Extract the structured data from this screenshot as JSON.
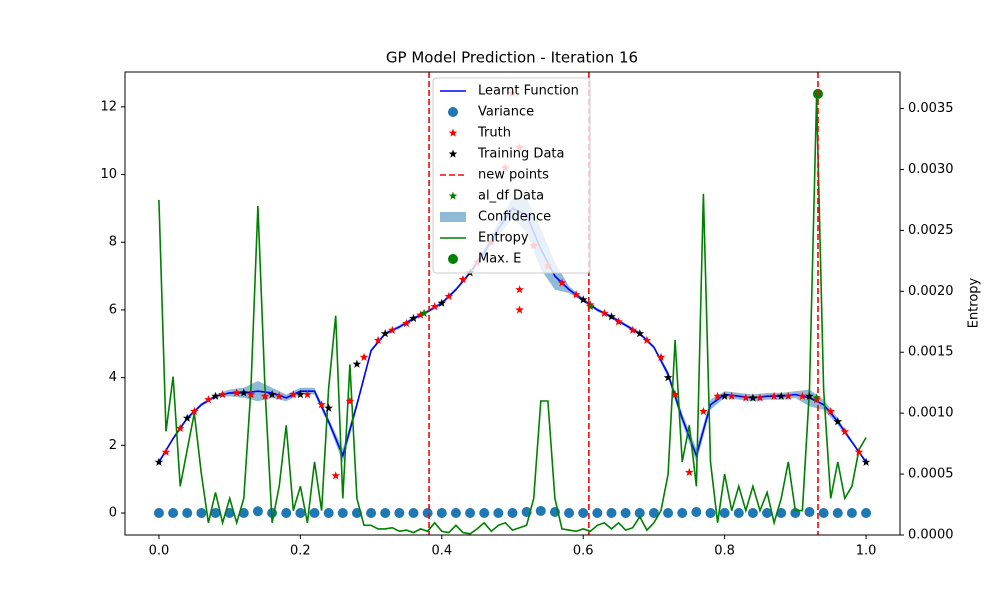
{
  "chart_data": {
    "type": "line",
    "title": "GP Model Prediction - Iteration 16",
    "y2label": "Entropy",
    "xlim": [
      -0.048,
      1.048
    ],
    "ylim": [
      -0.65,
      13.03
    ],
    "y2lim": [
      0,
      0.0038
    ],
    "xticks": [
      {
        "value": 0,
        "label": "0.0"
      },
      {
        "value": 0.2,
        "label": "0.2"
      },
      {
        "value": 0.4,
        "label": "0.4"
      },
      {
        "value": 0.6,
        "label": "0.6"
      },
      {
        "value": 0.8,
        "label": "0.8"
      },
      {
        "value": 1,
        "label": "1.0"
      }
    ],
    "yticks": [
      0,
      2,
      4,
      6,
      8,
      10,
      12
    ],
    "y2ticks": [
      {
        "value": 0,
        "label": "0.0000"
      },
      {
        "value": 0.0005,
        "label": "0.0005"
      },
      {
        "value": 0.001,
        "label": "0.0010"
      },
      {
        "value": 0.0015,
        "label": "0.0015"
      },
      {
        "value": 0.002,
        "label": "0.0020"
      },
      {
        "value": 0.0025,
        "label": "0.0025"
      },
      {
        "value": 0.003,
        "label": "0.0030"
      },
      {
        "value": 0.0035,
        "label": "0.0035"
      }
    ],
    "legend": "upper center",
    "series": [
      {
        "name": "Learnt Function",
        "type": "line",
        "color": "#0000ff",
        "x": [
          0,
          0.02,
          0.04,
          0.06,
          0.08,
          0.1,
          0.12,
          0.14,
          0.16,
          0.18,
          0.2,
          0.22,
          0.24,
          0.26,
          0.28,
          0.3,
          0.32,
          0.34,
          0.36,
          0.38,
          0.4,
          0.42,
          0.44,
          0.46,
          0.48,
          0.5,
          0.52,
          0.54,
          0.56,
          0.58,
          0.6,
          0.62,
          0.64,
          0.66,
          0.68,
          0.7,
          0.72,
          0.74,
          0.76,
          0.78,
          0.8,
          0.82,
          0.84,
          0.86,
          0.88,
          0.9,
          0.92,
          0.94,
          0.96,
          0.98,
          1
        ],
        "values": [
          1.5,
          2.2,
          2.8,
          3.2,
          3.45,
          3.55,
          3.55,
          3.6,
          3.55,
          3.4,
          3.6,
          3.6,
          2.7,
          1.7,
          3.2,
          4.8,
          5.3,
          5.5,
          5.75,
          5.95,
          6.2,
          6.6,
          7.1,
          7.7,
          8.4,
          9.0,
          8.8,
          7.8,
          7.0,
          6.6,
          6.3,
          6.0,
          5.8,
          5.55,
          5.3,
          4.9,
          4.1,
          2.8,
          1.7,
          3.2,
          3.5,
          3.45,
          3.4,
          3.45,
          3.45,
          3.5,
          3.4,
          3.2,
          2.7,
          2.1,
          1.5
        ]
      },
      {
        "name": "Variance",
        "type": "scatter",
        "color": "#1f77b4",
        "x": [
          0,
          0.02,
          0.04,
          0.06,
          0.08,
          0.1,
          0.12,
          0.14,
          0.16,
          0.18,
          0.2,
          0.22,
          0.24,
          0.26,
          0.28,
          0.3,
          0.32,
          0.34,
          0.36,
          0.38,
          0.4,
          0.42,
          0.44,
          0.46,
          0.48,
          0.5,
          0.52,
          0.54,
          0.56,
          0.58,
          0.6,
          0.62,
          0.64,
          0.66,
          0.68,
          0.7,
          0.72,
          0.74,
          0.76,
          0.78,
          0.8,
          0.82,
          0.84,
          0.86,
          0.88,
          0.9,
          0.92,
          0.94,
          0.96,
          0.98,
          1
        ],
        "values": [
          0,
          0,
          0,
          0,
          0,
          0,
          0,
          0.05,
          0,
          0,
          0,
          0,
          0,
          0,
          0,
          0,
          0,
          0,
          0,
          0,
          0,
          0,
          0,
          0,
          0,
          0,
          0.03,
          0.06,
          0.03,
          0,
          0,
          0,
          0,
          0,
          0,
          0,
          0,
          0,
          0.03,
          0,
          0,
          0,
          0,
          0,
          0,
          0,
          0.03,
          0,
          0,
          0,
          0
        ]
      },
      {
        "name": "Truth",
        "type": "star",
        "color": "#ff0000",
        "x": [
          0.01,
          0.03,
          0.05,
          0.07,
          0.09,
          0.11,
          0.13,
          0.15,
          0.17,
          0.19,
          0.21,
          0.23,
          0.25,
          0.27,
          0.29,
          0.31,
          0.33,
          0.35,
          0.37,
          0.39,
          0.41,
          0.43,
          0.45,
          0.47,
          0.49,
          0.5,
          0.51,
          0.51,
          0.51,
          0.53,
          0.55,
          0.57,
          0.59,
          0.61,
          0.63,
          0.65,
          0.67,
          0.69,
          0.71,
          0.73,
          0.75,
          0.77,
          0.79,
          0.81,
          0.83,
          0.85,
          0.87,
          0.89,
          0.91,
          0.93,
          0.95,
          0.97,
          0.99
        ],
        "values": [
          1.8,
          2.5,
          3.0,
          3.35,
          3.5,
          3.55,
          3.5,
          3.45,
          3.45,
          3.5,
          3.5,
          3.2,
          1.1,
          3.3,
          4.6,
          5.1,
          5.4,
          5.6,
          5.85,
          6.1,
          6.4,
          6.9,
          7.4,
          8.0,
          10.2,
          12.4,
          10.8,
          6.6,
          6.0,
          7.9,
          7.3,
          6.8,
          6.45,
          6.15,
          5.9,
          5.65,
          5.4,
          5.1,
          4.6,
          3.5,
          1.2,
          3.0,
          3.45,
          3.45,
          3.4,
          3.4,
          3.45,
          3.45,
          3.45,
          3.35,
          3.0,
          2.4,
          1.8
        ]
      },
      {
        "name": "Training Data",
        "type": "star",
        "color": "#000000",
        "x": [
          0,
          0.04,
          0.08,
          0.12,
          0.16,
          0.2,
          0.24,
          0.28,
          0.32,
          0.36,
          0.4,
          0.44,
          0.6,
          0.64,
          0.68,
          0.72,
          0.8,
          0.84,
          0.88,
          0.92,
          0.96,
          1
        ],
        "values": [
          1.5,
          2.8,
          3.45,
          3.55,
          3.5,
          3.5,
          3.1,
          4.4,
          5.3,
          5.75,
          6.2,
          7.1,
          6.3,
          5.8,
          5.3,
          4.0,
          3.45,
          3.4,
          3.45,
          3.45,
          2.7,
          1.5
        ]
      },
      {
        "name": "new points",
        "type": "vline",
        "color": "#ff0000",
        "x": [
          0.382,
          0.608,
          0.932
        ]
      },
      {
        "name": "al_df Data",
        "type": "star",
        "color": "#008000",
        "x": [
          0.375,
          0.61,
          0.93
        ],
        "values": [
          5.9,
          6.1,
          3.4
        ]
      },
      {
        "name": "Confidence",
        "type": "band",
        "color": "#1f77b4",
        "x": [
          0,
          0.02,
          0.04,
          0.06,
          0.08,
          0.1,
          0.12,
          0.14,
          0.16,
          0.18,
          0.2,
          0.22,
          0.24,
          0.26,
          0.28,
          0.3,
          0.32,
          0.34,
          0.36,
          0.38,
          0.4,
          0.42,
          0.44,
          0.46,
          0.48,
          0.5,
          0.52,
          0.54,
          0.56,
          0.58,
          0.6,
          0.62,
          0.64,
          0.66,
          0.68,
          0.7,
          0.72,
          0.74,
          0.76,
          0.78,
          0.8,
          0.82,
          0.84,
          0.86,
          0.88,
          0.9,
          0.92,
          0.94,
          0.96,
          0.98,
          1
        ],
        "lower": [
          1.45,
          2.15,
          2.75,
          3.15,
          3.4,
          3.45,
          3.4,
          3.3,
          3.4,
          3.3,
          3.5,
          3.5,
          2.6,
          1.5,
          3.1,
          4.75,
          5.25,
          5.45,
          5.7,
          5.9,
          6.15,
          6.55,
          7.05,
          7.6,
          8.2,
          8.7,
          8.3,
          7.2,
          6.6,
          6.5,
          6.25,
          5.95,
          5.75,
          5.5,
          5.25,
          4.85,
          4.0,
          2.65,
          1.5,
          3.05,
          3.4,
          3.35,
          3.3,
          3.35,
          3.35,
          3.4,
          3.15,
          3.05,
          2.6,
          2.05,
          1.45
        ],
        "upper": [
          1.55,
          2.25,
          2.85,
          3.25,
          3.5,
          3.65,
          3.7,
          3.9,
          3.7,
          3.5,
          3.7,
          3.7,
          2.8,
          1.9,
          3.3,
          4.85,
          5.35,
          5.55,
          5.8,
          6.0,
          6.25,
          6.65,
          7.15,
          7.8,
          8.6,
          9.3,
          9.3,
          8.4,
          7.4,
          6.7,
          6.35,
          6.05,
          5.85,
          5.6,
          5.35,
          4.95,
          4.2,
          2.95,
          1.9,
          3.35,
          3.6,
          3.55,
          3.5,
          3.55,
          3.55,
          3.6,
          3.65,
          3.35,
          2.8,
          2.15,
          1.55
        ]
      },
      {
        "name": "Entropy",
        "type": "line",
        "axis": "y2",
        "color": "#008000",
        "x": [
          0,
          0.01,
          0.02,
          0.03,
          0.04,
          0.05,
          0.06,
          0.07,
          0.08,
          0.09,
          0.1,
          0.11,
          0.12,
          0.13,
          0.14,
          0.15,
          0.16,
          0.17,
          0.18,
          0.19,
          0.2,
          0.21,
          0.22,
          0.23,
          0.24,
          0.25,
          0.26,
          0.27,
          0.28,
          0.29,
          0.3,
          0.31,
          0.32,
          0.33,
          0.34,
          0.35,
          0.36,
          0.37,
          0.38,
          0.39,
          0.4,
          0.41,
          0.42,
          0.43,
          0.44,
          0.45,
          0.46,
          0.47,
          0.48,
          0.49,
          0.5,
          0.51,
          0.52,
          0.53,
          0.54,
          0.55,
          0.56,
          0.57,
          0.58,
          0.59,
          0.6,
          0.61,
          0.62,
          0.63,
          0.64,
          0.65,
          0.66,
          0.67,
          0.68,
          0.69,
          0.7,
          0.71,
          0.72,
          0.73,
          0.74,
          0.75,
          0.76,
          0.77,
          0.78,
          0.79,
          0.8,
          0.81,
          0.82,
          0.83,
          0.84,
          0.85,
          0.86,
          0.87,
          0.88,
          0.89,
          0.9,
          0.91,
          0.92,
          0.93,
          0.94,
          0.95,
          0.96,
          0.97,
          0.98,
          0.99,
          1
        ],
        "values": [
          0.00275,
          0.00085,
          0.0013,
          0.0004,
          0.0007,
          0.001,
          0.0005,
          0.0001,
          0.00035,
          0.0001,
          0.0003,
          0.0001,
          0.0003,
          0.0012,
          0.0027,
          0.0012,
          0.0001,
          0.0004,
          0.0009,
          0.0002,
          0.0004,
          0.0001,
          0.0006,
          0.0002,
          0.0012,
          0.0018,
          0.0003,
          0.0014,
          0.0003,
          8e-05,
          8e-05,
          5e-05,
          5e-05,
          6e-05,
          3e-05,
          4e-05,
          2e-05,
          5e-05,
          3e-05,
          0.0001,
          3e-05,
          2e-05,
          8e-05,
          2e-05,
          1e-05,
          5e-05,
          0.0001,
          3e-05,
          8e-05,
          0.0001,
          4e-05,
          6e-05,
          8e-05,
          0.0003,
          0.0011,
          0.0011,
          0.0003,
          5e-05,
          4e-05,
          3e-05,
          5e-05,
          3e-05,
          8e-05,
          0.0001,
          5e-05,
          0.0001,
          4e-05,
          6e-05,
          0.00015,
          4e-05,
          0.0001,
          0.0002,
          0.0005,
          0.0016,
          0.0006,
          0.0009,
          0.0004,
          0.0028,
          0.0006,
          0.0001,
          0.0005,
          0.0002,
          0.0004,
          0.0002,
          0.0004,
          0.0002,
          0.00035,
          0.0001,
          0.0003,
          0.0006,
          0.0002,
          0.0002,
          0.0012,
          0.0036,
          0.0012,
          0.0003,
          0.0006,
          0.0003,
          0.0004,
          0.0007,
          0.0008
        ]
      },
      {
        "name": "Max. E",
        "type": "scatter",
        "axis": "y2",
        "color": "#008000",
        "x": [
          0.932
        ],
        "values": [
          0.00362
        ]
      }
    ]
  }
}
